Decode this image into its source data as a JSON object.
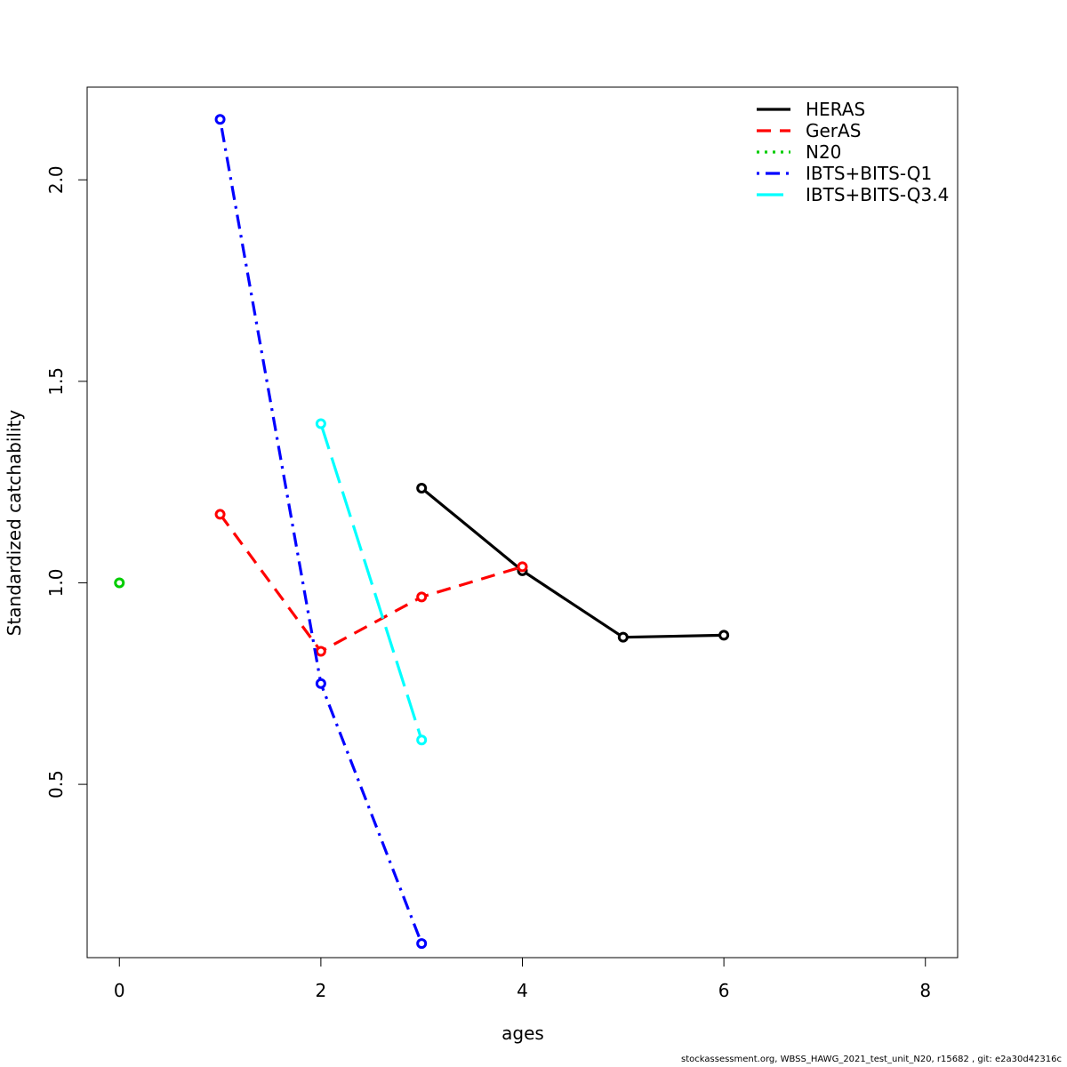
{
  "chart_data": {
    "type": "line",
    "title": "",
    "xlabel": "ages",
    "ylabel": "Standardized catchability",
    "xlim": [
      -0.32,
      8.32
    ],
    "ylim": [
      0.07,
      2.23
    ],
    "xticks": [
      0,
      2,
      4,
      6,
      8
    ],
    "yticks": [
      0.5,
      1.0,
      1.5,
      2.0
    ],
    "xtick_labels": [
      "0",
      "2",
      "4",
      "6",
      "8"
    ],
    "ytick_labels": [
      "0.5",
      "1.0",
      "1.5",
      "2.0"
    ],
    "grid": false,
    "legend_position": "top-right",
    "series": [
      {
        "name": "HERAS",
        "color": "#000000",
        "dash": "solid",
        "x": [
          3,
          4,
          5,
          6
        ],
        "y": [
          1.235,
          1.03,
          0.865,
          0.87
        ]
      },
      {
        "name": "GerAS",
        "color": "#ff0000",
        "dash": "dashed",
        "x": [
          1,
          2,
          3,
          4
        ],
        "y": [
          1.17,
          0.83,
          0.965,
          1.04
        ]
      },
      {
        "name": "N20",
        "color": "#00cd00",
        "dash": "dotted",
        "x": [
          0
        ],
        "y": [
          1.0
        ]
      },
      {
        "name": "IBTS+BITS-Q1",
        "color": "#0000ff",
        "dash": "dotdash",
        "x": [
          1,
          2,
          3
        ],
        "y": [
          2.15,
          0.75,
          0.105
        ]
      },
      {
        "name": "IBTS+BITS-Q3.4",
        "color": "#00ffff",
        "dash": "longdash",
        "x": [
          2,
          3
        ],
        "y": [
          1.395,
          0.61
        ]
      }
    ]
  },
  "footer": "stockassessment.org, WBSS_HAWG_2021_test_unit_N20, r15682 , git: e2a30d42316c"
}
